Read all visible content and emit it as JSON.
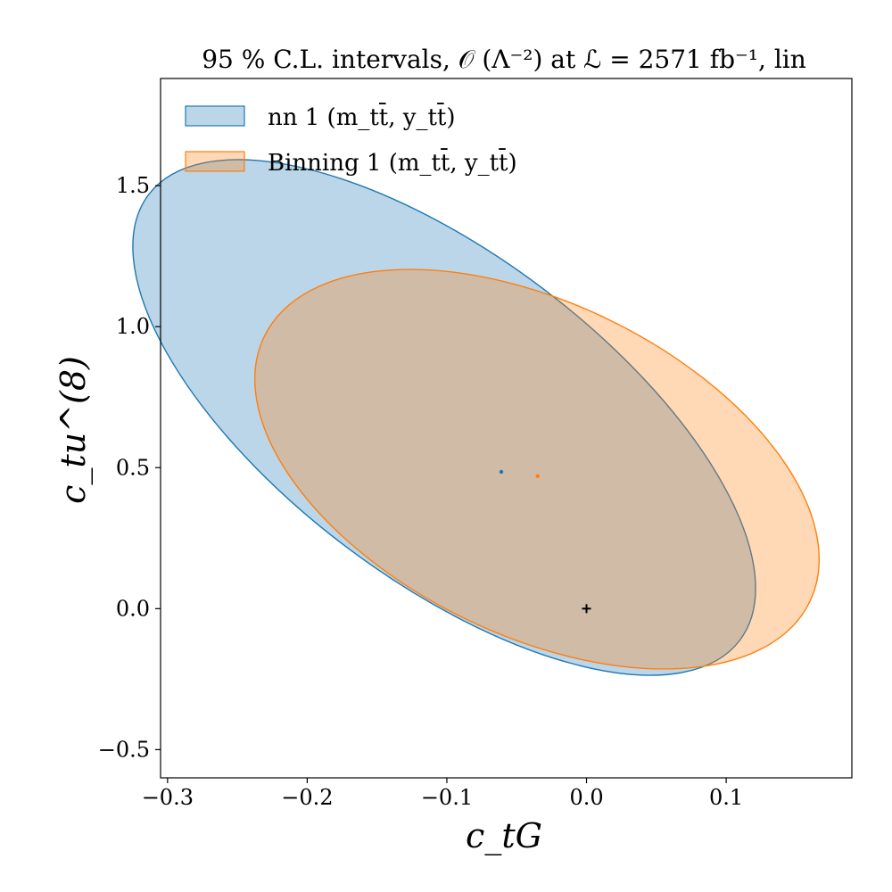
{
  "chart_data": {
    "type": "contour",
    "title": "95 % C.L. intervals,  𝒪 (Λ⁻²) at ℒ = 2571 fb⁻¹, lin",
    "xlabel": "c_tG",
    "ylabel": "c_tu^(8)",
    "xlim": [
      -0.305,
      0.19
    ],
    "ylim": [
      -0.6,
      1.88
    ],
    "xticks": [
      -0.3,
      -0.2,
      -0.1,
      0.0,
      0.1
    ],
    "xtick_labels": [
      "−0.3",
      "−0.2",
      "−0.1",
      "0.0",
      "0.1"
    ],
    "yticks": [
      -0.5,
      0.0,
      0.5,
      1.0,
      1.5
    ],
    "ytick_labels": [
      "−0.5",
      "0.0",
      "0.5",
      "1.0",
      "1.5"
    ],
    "grid": false,
    "legend_position": "top-left",
    "series": [
      {
        "name": "nn 1 (m_tt̄, y_tt̄)",
        "color": "#1f77b4",
        "fill": "#1f77b4",
        "fill_opacity": 0.3,
        "center": [
          -0.061,
          0.485
        ],
        "extent_x": [
          -0.29,
          0.168
        ],
        "extent_y": [
          -0.485,
          1.765
        ]
      },
      {
        "name": "Binning 1 (m_tt̄, y_tt̄)",
        "color": "#ff7f0e",
        "fill": "#ff7f0e",
        "fill_opacity": 0.3,
        "center": [
          -0.035,
          0.47
        ],
        "extent_x": [
          -0.239,
          0.168
        ],
        "extent_y": [
          -0.21,
          1.2
        ]
      }
    ],
    "sm_point": {
      "x": 0.0,
      "y": 0.0,
      "marker": "+",
      "color": "#000000"
    }
  }
}
